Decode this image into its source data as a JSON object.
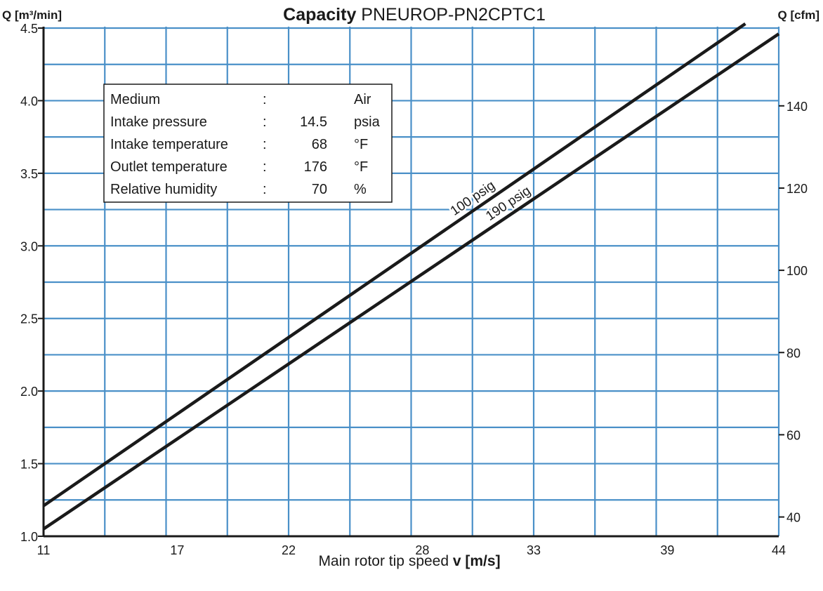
{
  "chart_data": {
    "type": "line",
    "title_bold": "Capacity",
    "title_rest": " PNEUROP-PN2CPTC1",
    "ylabel_left": "Q [m³/min]",
    "ylabel_right": "Q [cfm]",
    "xlabel_prefix": "Main rotor tip speed ",
    "xlabel_bold": "v [m/s]",
    "xlim": [
      11,
      44
    ],
    "ylim": [
      1.0,
      4.5
    ],
    "x_ticks": [
      11,
      17,
      22,
      28,
      33,
      39,
      44
    ],
    "y_ticks": [
      1.0,
      1.5,
      2.0,
      2.5,
      3.0,
      3.5,
      4.0,
      4.5
    ],
    "y_tick_labels": [
      "1.0",
      "1.5",
      "2.0",
      "2.5",
      "3.0",
      "3.5",
      "4.0",
      "4.5"
    ],
    "y_right_ticks": [
      40,
      60,
      80,
      100,
      120,
      140
    ],
    "cfm_per_m3min": 35.3147,
    "grid": true,
    "series": [
      {
        "name": "100 psig",
        "x": [
          11,
          42.5
        ],
        "y": [
          1.21,
          4.53
        ]
      },
      {
        "name": "190 psig",
        "x": [
          11,
          44
        ],
        "y": [
          1.05,
          4.46
        ]
      }
    ]
  },
  "info_box": {
    "rows": [
      {
        "label": "Medium",
        "sep": ":",
        "value": "",
        "unit": "Air"
      },
      {
        "label": "Intake pressure",
        "sep": ":",
        "value": "14.5",
        "unit": "psia"
      },
      {
        "label": "Intake temperature",
        "sep": ":",
        "value": "68",
        "unit": "°F"
      },
      {
        "label": "Outlet temperature",
        "sep": ":",
        "value": "176",
        "unit": "°F"
      },
      {
        "label": "Relative humidity",
        "sep": ":",
        "value": "70",
        "unit": "%"
      }
    ]
  }
}
